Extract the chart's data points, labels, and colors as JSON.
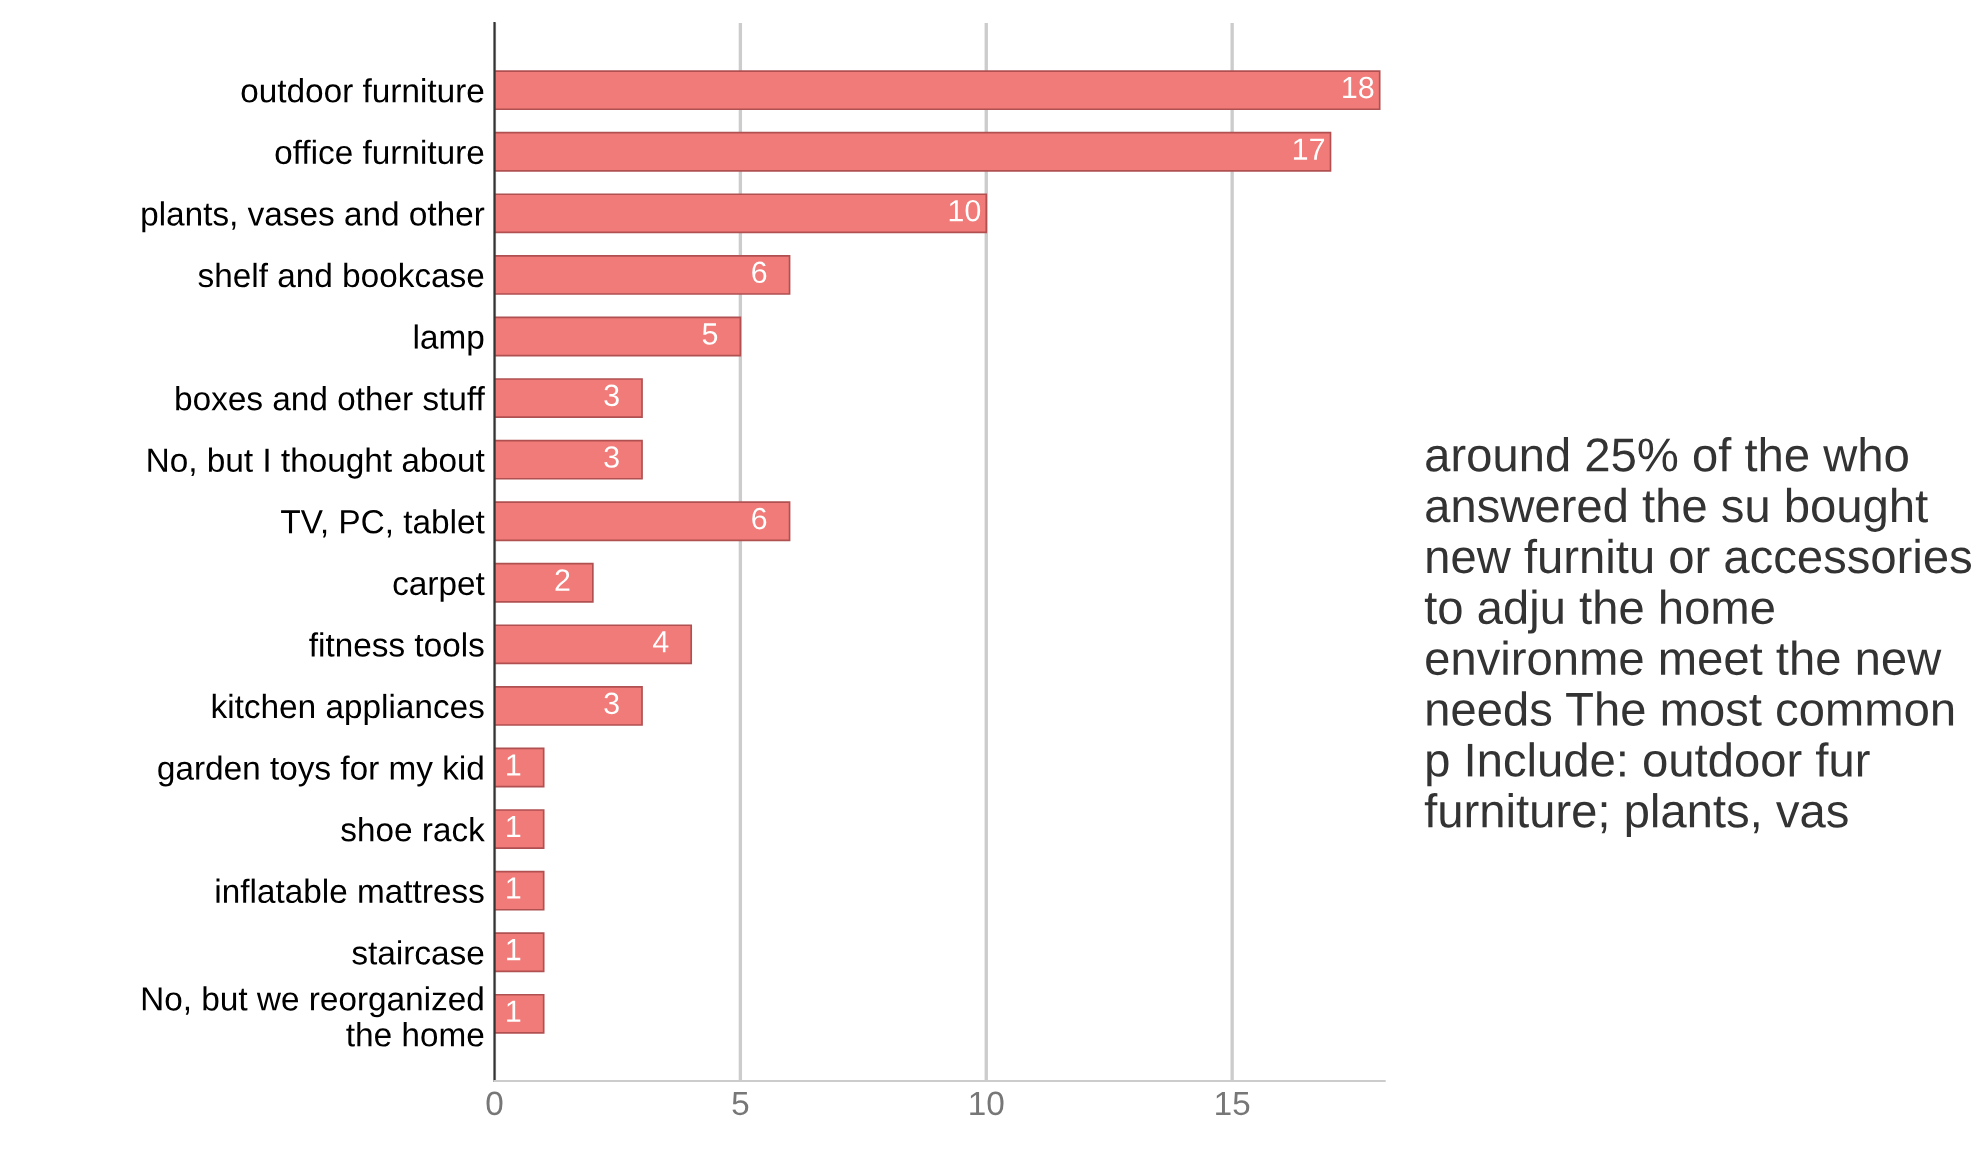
{
  "chart_data": {
    "type": "bar",
    "orientation": "horizontal",
    "categories": [
      "outdoor furniture",
      "office furniture",
      "plants, vases and other",
      "shelf and bookcase",
      "lamp",
      "boxes and other stuff",
      "No, but I thought about",
      "TV, PC, tablet",
      "carpet",
      "fitness tools",
      "kitchen appliances",
      "garden toys for my kid",
      "shoe rack",
      "inflatable mattress",
      "staircase",
      "No, but we reorganized\nthe home"
    ],
    "values": [
      18,
      17,
      10,
      6,
      5,
      3,
      3,
      6,
      2,
      4,
      3,
      1,
      1,
      1,
      1,
      1
    ],
    "color": "#f07b78",
    "xlim": [
      0,
      18.1
    ],
    "xticks": [
      0,
      5,
      10,
      15
    ],
    "grid": "x",
    "data_labels": true,
    "annotations": [
      "around 25% of the who answered the su bought new furnitu or accessories to adju the home environme meet the new needs The most common p Include: outdoor fur furniture; plants, vas"
    ]
  }
}
